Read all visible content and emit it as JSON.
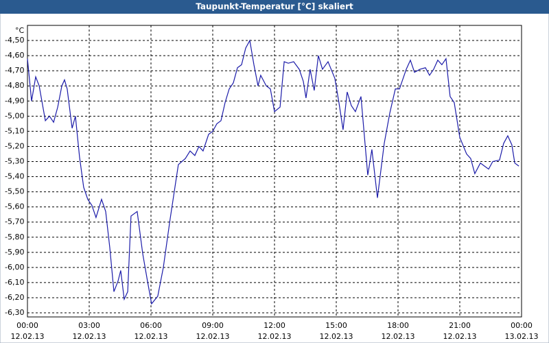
{
  "chart_data": {
    "type": "line",
    "title": "Taupunkt-Temperatur [°C] skaliert",
    "y_unit": "°C",
    "x": [
      0,
      0.2,
      0.4,
      0.57,
      0.87,
      1.07,
      1.27,
      1.47,
      1.67,
      1.8,
      1.93,
      2.17,
      2.33,
      2.53,
      2.73,
      2.93,
      3.13,
      3.33,
      3.6,
      3.8,
      4,
      4.2,
      4.4,
      4.53,
      4.7,
      4.87,
      5.03,
      5.33,
      5.6,
      5.83,
      6.03,
      6.33,
      6.6,
      6.93,
      7.33,
      7.67,
      7.9,
      8.13,
      8.33,
      8.53,
      8.8,
      9,
      9.2,
      9.4,
      9.6,
      9.8,
      10,
      10.2,
      10.4,
      10.6,
      10.8,
      11,
      11.2,
      11.33,
      11.6,
      11.8,
      12,
      12.27,
      12.47,
      12.67,
      12.93,
      13.2,
      13.4,
      13.53,
      13.73,
      13.93,
      14.13,
      14.33,
      14.6,
      14.93,
      15.13,
      15.33,
      15.53,
      15.73,
      15.93,
      16.2,
      16.53,
      16.73,
      17,
      17.33,
      17.6,
      17.87,
      18.07,
      18.4,
      18.6,
      18.8,
      19.07,
      19.33,
      19.53,
      19.73,
      19.93,
      20.13,
      20.33,
      20.53,
      20.73,
      21,
      21.33,
      21.53,
      21.73,
      22,
      22.2,
      22.4,
      22.6,
      22.93,
      23.13,
      23.33,
      23.53,
      23.67,
      23.87
    ],
    "values": [
      -4.62,
      -4.9,
      -4.74,
      -4.8,
      -5.03,
      -5,
      -5.04,
      -4.94,
      -4.8,
      -4.76,
      -4.82,
      -5.08,
      -5,
      -5.27,
      -5.47,
      -5.55,
      -5.59,
      -5.67,
      -5.55,
      -5.63,
      -5.87,
      -6.16,
      -6.09,
      -6.02,
      -6.21,
      -6.16,
      -5.66,
      -5.63,
      -5.91,
      -6.09,
      -6.24,
      -6.19,
      -6,
      -5.68,
      -5.32,
      -5.28,
      -5.23,
      -5.26,
      -5.2,
      -5.23,
      -5.12,
      -5.1,
      -5.05,
      -5.03,
      -4.91,
      -4.82,
      -4.78,
      -4.68,
      -4.66,
      -4.55,
      -4.5,
      -4.66,
      -4.8,
      -4.73,
      -4.8,
      -4.82,
      -4.97,
      -4.94,
      -4.64,
      -4.65,
      -4.64,
      -4.69,
      -4.77,
      -4.88,
      -4.69,
      -4.83,
      -4.6,
      -4.69,
      -4.64,
      -4.75,
      -4.91,
      -5.09,
      -4.84,
      -4.93,
      -4.97,
      -4.87,
      -5.39,
      -5.22,
      -5.54,
      -5.18,
      -4.98,
      -4.82,
      -4.82,
      -4.69,
      -4.63,
      -4.71,
      -4.69,
      -4.68,
      -4.73,
      -4.69,
      -4.63,
      -4.66,
      -4.62,
      -4.87,
      -4.91,
      -5.14,
      -5.25,
      -5.28,
      -5.38,
      -5.31,
      -5.33,
      -5.35,
      -5.3,
      -5.29,
      -5.18,
      -5.13,
      -5.19,
      -5.31,
      -5.33
    ],
    "color": "#1a1aa8",
    "grid": true,
    "xlim": [
      0,
      24
    ],
    "xticks": [
      {
        "value": 0,
        "label": "00:00",
        "date": "12.02.13"
      },
      {
        "value": 3,
        "label": "03:00",
        "date": "12.02.13"
      },
      {
        "value": 6,
        "label": "06:00",
        "date": "12.02.13"
      },
      {
        "value": 9,
        "label": "09:00",
        "date": "12.02.13"
      },
      {
        "value": 12,
        "label": "12:00",
        "date": "12.02.13"
      },
      {
        "value": 15,
        "label": "15:00",
        "date": "12.02.13"
      },
      {
        "value": 18,
        "label": "18:00",
        "date": "12.02.13"
      },
      {
        "value": 21,
        "label": "21:00",
        "date": "12.02.13"
      },
      {
        "value": 24,
        "label": "00:00",
        "date": "13.02.13"
      }
    ],
    "ylim": [
      -6.327,
      -4.4
    ],
    "yticks": [
      {
        "value": -4.5,
        "label": "-4,50"
      },
      {
        "value": -4.6,
        "label": "-4,60"
      },
      {
        "value": -4.7,
        "label": "-4,70"
      },
      {
        "value": -4.8,
        "label": "-4,80"
      },
      {
        "value": -4.9,
        "label": "-4,90"
      },
      {
        "value": -5,
        "label": "-5,00"
      },
      {
        "value": -5.1,
        "label": "-5,10"
      },
      {
        "value": -5.2,
        "label": "-5,20"
      },
      {
        "value": -5.3,
        "label": "-5,30"
      },
      {
        "value": -5.4,
        "label": "-5,40"
      },
      {
        "value": -5.5,
        "label": "-5,50"
      },
      {
        "value": -5.6,
        "label": "-5,60"
      },
      {
        "value": -5.7,
        "label": "-5,70"
      },
      {
        "value": -5.8,
        "label": "-5,80"
      },
      {
        "value": -5.9,
        "label": "-5,90"
      },
      {
        "value": -6,
        "label": "-6,00"
      },
      {
        "value": -6.1,
        "label": "-6,10"
      },
      {
        "value": -6.2,
        "label": "-6,20"
      },
      {
        "value": -6.3,
        "label": "-6,30"
      }
    ]
  }
}
